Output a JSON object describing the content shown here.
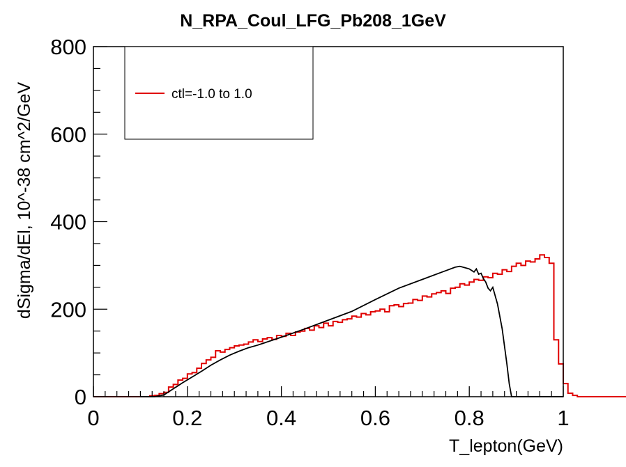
{
  "chart_data": {
    "type": "line",
    "title": "N_RPA_Coul_LFG_Pb208_1GeV",
    "xlabel": "T_lepton(GeV)",
    "ylabel": "dSigma/dEl, 10^-38 cm^2/GeV",
    "xlim": [
      0,
      1
    ],
    "ylim": [
      0,
      800
    ],
    "x_ticks": [
      "0",
      "0.2",
      "0.4",
      "0.6",
      "0.8",
      "1"
    ],
    "y_ticks": [
      "0",
      "200",
      "400",
      "600",
      "800"
    ],
    "grid": false,
    "legend_position": "top-left",
    "legend_entries": [
      "ctl=-1.0 to 1.0"
    ],
    "series": [
      {
        "name": "ctl=-1.0 to 1.0",
        "style": "histogram",
        "color": "#e00000",
        "bin_width": 0.01,
        "x_start": 0.0,
        "values": [
          0,
          0,
          0,
          0,
          0,
          0,
          0,
          0,
          0,
          0,
          0,
          0,
          2,
          3,
          7,
          10,
          22,
          28,
          38,
          42,
          52,
          55,
          65,
          76,
          84,
          90,
          105,
          102,
          108,
          112,
          116,
          118,
          120,
          125,
          130,
          126,
          132,
          135,
          131,
          140,
          138,
          145,
          140,
          148,
          150,
          156,
          152,
          162,
          158,
          168,
          162,
          172,
          170,
          176,
          178,
          184,
          182,
          190,
          187,
          194,
          196,
          200,
          194,
          208,
          210,
          206,
          213,
          214,
          222,
          220,
          230,
          228,
          235,
          238,
          242,
          236,
          248,
          250,
          258,
          255,
          262,
          268,
          266,
          274,
          272,
          282,
          280,
          290,
          286,
          298,
          305,
          300,
          310,
          308,
          315,
          324,
          318,
          305,
          130,
          75,
          30,
          8,
          3,
          0,
          0,
          0,
          0,
          0,
          0,
          0,
          0,
          0,
          0,
          0,
          0,
          0,
          0,
          0,
          0,
          0,
          0,
          0,
          0,
          0,
          0,
          0,
          0,
          0,
          0,
          0,
          0,
          0,
          0,
          0,
          0,
          0,
          0,
          0,
          0,
          0,
          0,
          0,
          0,
          0,
          0,
          0,
          0,
          0,
          0,
          0,
          0,
          0,
          0,
          0,
          0,
          0,
          0,
          0,
          0,
          0,
          0,
          0,
          0,
          0,
          0,
          0,
          0,
          0,
          0,
          0,
          0,
          0,
          0,
          0,
          0,
          0,
          0,
          0,
          0,
          0,
          0,
          0,
          0,
          0,
          0,
          0,
          0,
          0,
          0,
          0,
          0,
          0,
          0,
          0,
          0,
          0,
          0,
          0,
          0,
          0
        ]
      },
      {
        "style": "line",
        "color": "#000000",
        "x": [
          0.1,
          0.13,
          0.15,
          0.17,
          0.19,
          0.21,
          0.23,
          0.25,
          0.27,
          0.29,
          0.31,
          0.33,
          0.35,
          0.4,
          0.45,
          0.5,
          0.55,
          0.6,
          0.65,
          0.7,
          0.75,
          0.77,
          0.78,
          0.79,
          0.8,
          0.81,
          0.815,
          0.82,
          0.825,
          0.83,
          0.835,
          0.84,
          0.845,
          0.85,
          0.86,
          0.87,
          0.88,
          0.885,
          0.89,
          0.9,
          1.0
        ],
        "y": [
          0,
          0,
          4,
          18,
          32,
          45,
          58,
          72,
          84,
          95,
          104,
          112,
          118,
          136,
          155,
          175,
          195,
          222,
          248,
          268,
          288,
          296,
          298,
          295,
          292,
          285,
          292,
          280,
          282,
          270,
          262,
          248,
          242,
          250,
          212,
          155,
          75,
          30,
          0,
          0,
          0
        ]
      }
    ],
    "legend": {
      "label": "ctl=-1.0 to 1.0"
    }
  }
}
